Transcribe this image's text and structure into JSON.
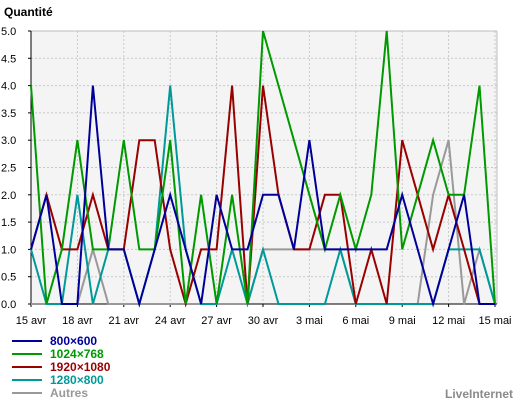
{
  "chart_data": {
    "type": "line",
    "ylabel": "Quantité",
    "ylim": [
      0,
      5
    ],
    "yticks": [
      "0.0",
      "0.5",
      "1.0",
      "1.5",
      "2.0",
      "2.5",
      "3.0",
      "3.5",
      "4.0",
      "4.5",
      "5.0"
    ],
    "x": [
      "15 avr",
      "16 avr",
      "17 avr",
      "18 avr",
      "19 avr",
      "20 avr",
      "21 avr",
      "22 avr",
      "23 avr",
      "24 avr",
      "25 avr",
      "26 avr",
      "27 avr",
      "28 avr",
      "29 avr",
      "30 avr",
      "1 mai",
      "2 mai",
      "3 mai",
      "4 mai",
      "5 mai",
      "6 mai",
      "7 mai",
      "8 mai",
      "9 mai",
      "10 mai",
      "11 mai",
      "12 mai",
      "13 mai",
      "14 mai",
      "15 mai"
    ],
    "grid": true,
    "legend": "bottom-left",
    "series": [
      {
        "name": "800×600",
        "color": "#000099",
        "values": [
          1,
          2,
          0,
          0,
          4,
          1,
          1,
          0,
          1,
          2,
          1,
          0,
          2,
          1,
          1,
          2,
          2,
          1,
          3,
          1,
          1,
          1,
          1,
          1,
          2,
          1,
          0,
          1,
          2,
          0,
          0
        ]
      },
      {
        "name": "1024×768",
        "color": "#009900",
        "values": [
          4,
          0,
          1,
          3,
          1,
          1,
          3,
          1,
          1,
          3,
          0,
          2,
          0,
          2,
          0,
          5,
          4,
          3,
          2,
          1,
          2,
          1,
          2,
          5,
          1,
          2,
          3,
          2,
          2,
          4,
          0
        ]
      },
      {
        "name": "1920×1080",
        "color": "#990000",
        "values": [
          1,
          2,
          1,
          1,
          2,
          1,
          1,
          3,
          3,
          1,
          0,
          1,
          1,
          4,
          0,
          4,
          2,
          1,
          1,
          2,
          2,
          0,
          1,
          0,
          3,
          2,
          1,
          2,
          1,
          0,
          0
        ]
      },
      {
        "name": "1280×800",
        "color": "#009999",
        "values": [
          1,
          0,
          0,
          2,
          0,
          1,
          1,
          0,
          1,
          4,
          1,
          0,
          0,
          1,
          0,
          1,
          0,
          0,
          0,
          0,
          1,
          0,
          0,
          0,
          0,
          0,
          0,
          1,
          1,
          1,
          0
        ]
      },
      {
        "name": "Autres",
        "color": "#999999",
        "values": [
          0,
          0,
          0,
          0,
          1,
          0,
          0,
          0,
          0,
          0,
          0,
          0,
          0,
          0,
          0,
          1,
          1,
          1,
          1,
          1,
          1,
          0,
          0,
          0,
          0,
          0,
          2,
          3,
          0,
          1,
          0
        ]
      }
    ]
  },
  "brand": "LiveInternet"
}
